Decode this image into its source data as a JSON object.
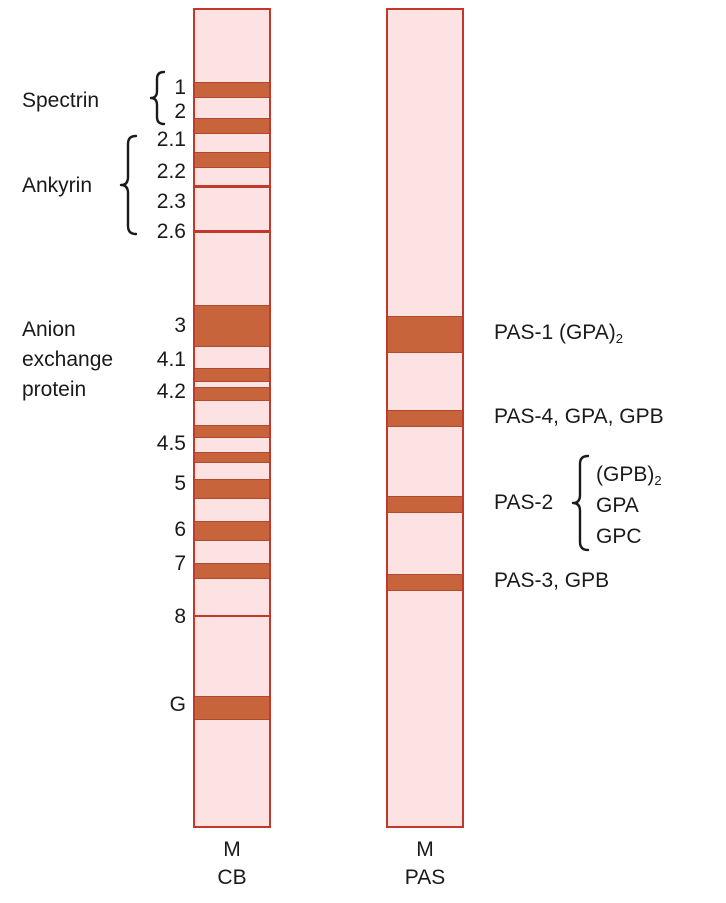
{
  "lanes": {
    "cb": {
      "label_top": "M",
      "label_bottom": "CB"
    },
    "pas": {
      "label_top": "M",
      "label_bottom": "PAS"
    }
  },
  "cb_band_labels": {
    "b1": "1",
    "b2": "2",
    "b21": "2.1",
    "b22": "2.2",
    "b23": "2.3",
    "b26": "2.6",
    "b3": "3",
    "b41": "4.1",
    "b42": "4.2",
    "b45": "4.5",
    "b5": "5",
    "b6": "6",
    "b7": "7",
    "b8": "8",
    "bG": "G"
  },
  "groups": {
    "spectrin": "Spectrin",
    "ankyrin": "Ankyrin",
    "anion": [
      "Anion",
      "exchange",
      "protein"
    ]
  },
  "pas_labels": {
    "pas1_name": "PAS-1 (GPA)",
    "pas1_sub": "2",
    "pas4": "PAS-4, GPA, GPB",
    "pas2": "PAS-2",
    "pas2_items": {
      "gpb2_name": "(GPB)",
      "gpb2_sub": "2",
      "gpa": "GPA",
      "gpc": "GPC"
    },
    "pas3": "PAS-3, GPB"
  },
  "colors": {
    "lane_fill": "#fde2e4",
    "lane_border": "#c0392b",
    "band_fill": "#c8643c"
  }
}
